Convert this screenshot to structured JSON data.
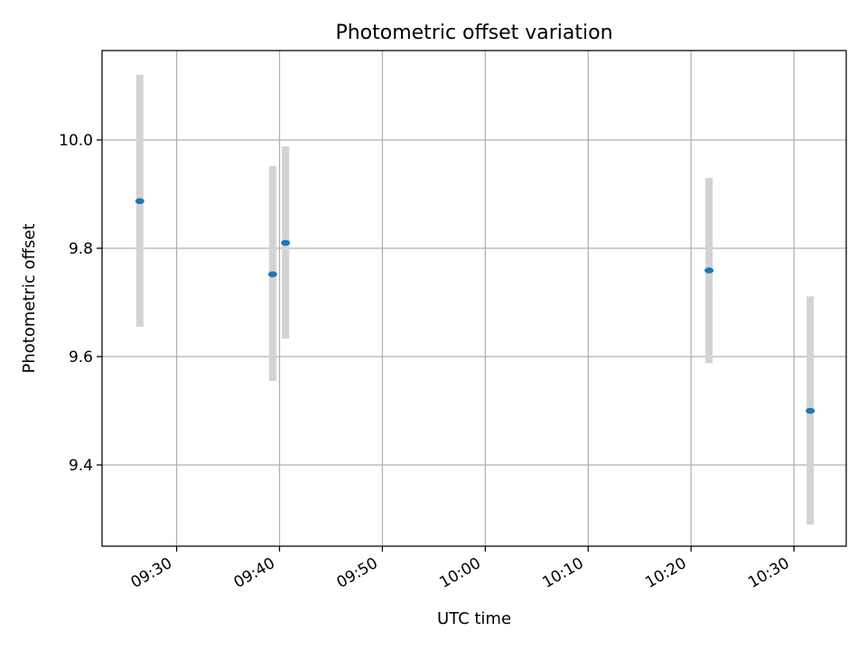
{
  "chart_data": {
    "type": "scatter",
    "title": "Photometric offset variation",
    "xlabel": "UTC time",
    "ylabel": "Photometric offset",
    "x_tick_labels": [
      "09:30",
      "09:40",
      "09:50",
      "10:00",
      "10:10",
      "10:20",
      "10:30"
    ],
    "y_ticks": [
      9.4,
      9.6,
      9.8,
      10.0
    ],
    "y_tick_labels": [
      "9.4",
      "9.6",
      "9.8",
      "10.0"
    ],
    "xlim": [
      "09:22:45",
      "10:35:05"
    ],
    "ylim": [
      9.25,
      10.165
    ],
    "grid": true,
    "series": [
      {
        "marker_color": "#1f77b4",
        "errorbar_color": "#d3d3d3",
        "points": [
          {
            "x": "09:26:25",
            "y": 9.887,
            "yerr_low": 9.655,
            "yerr_high": 10.12
          },
          {
            "x": "09:39:20",
            "y": 9.752,
            "yerr_low": 9.555,
            "yerr_high": 9.952
          },
          {
            "x": "09:40:35",
            "y": 9.81,
            "yerr_low": 9.633,
            "yerr_high": 9.988
          },
          {
            "x": "10:21:45",
            "y": 9.759,
            "yerr_low": 9.588,
            "yerr_high": 9.93
          },
          {
            "x": "10:31:35",
            "y": 9.5,
            "yerr_low": 9.29,
            "yerr_high": 9.711
          }
        ]
      }
    ]
  }
}
